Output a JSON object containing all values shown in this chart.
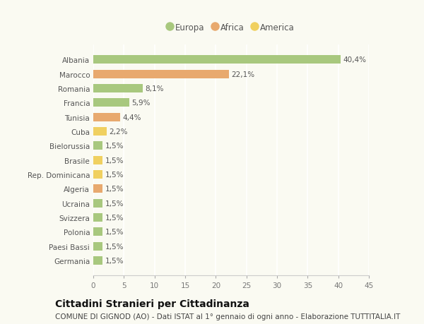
{
  "categories": [
    "Albania",
    "Marocco",
    "Romania",
    "Francia",
    "Tunisia",
    "Cuba",
    "Bielorussia",
    "Brasile",
    "Rep. Dominicana",
    "Algeria",
    "Ucraina",
    "Svizzera",
    "Polonia",
    "Paesi Bassi",
    "Germania"
  ],
  "values": [
    40.4,
    22.1,
    8.1,
    5.9,
    4.4,
    2.2,
    1.5,
    1.5,
    1.5,
    1.5,
    1.5,
    1.5,
    1.5,
    1.5,
    1.5
  ],
  "continents": [
    "Europa",
    "Africa",
    "Europa",
    "Europa",
    "Africa",
    "America",
    "Europa",
    "America",
    "America",
    "Africa",
    "Europa",
    "Europa",
    "Europa",
    "Europa",
    "Europa"
  ],
  "colors": {
    "Europa": "#a8c87e",
    "Africa": "#e8a96e",
    "America": "#f0d060"
  },
  "xlim": [
    0,
    45
  ],
  "xticks": [
    0,
    5,
    10,
    15,
    20,
    25,
    30,
    35,
    40,
    45
  ],
  "title": "Cittadini Stranieri per Cittadinanza",
  "subtitle": "COMUNE DI GIGNOD (AO) - Dati ISTAT al 1° gennaio di ogni anno - Elaborazione TUTTITALIA.IT",
  "background_color": "#fafaf2",
  "bar_height": 0.6,
  "title_fontsize": 10,
  "subtitle_fontsize": 7.5,
  "label_fontsize": 7.5,
  "tick_fontsize": 7.5,
  "legend_fontsize": 8.5
}
